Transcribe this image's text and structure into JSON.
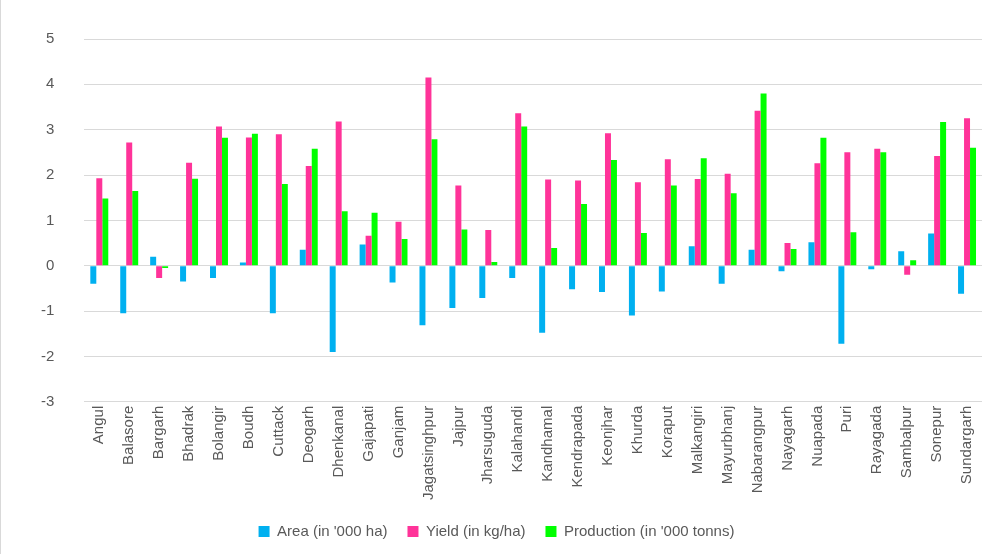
{
  "chart_data": {
    "type": "bar",
    "categories": [
      "Angul",
      "Balasore",
      "Bargarh",
      "Bhadrak",
      "Bolangir",
      "Boudh",
      "Cuttack",
      "Deogarh",
      "Dhenkanal",
      "Gajapati",
      "Ganjam",
      "Jagatsinghpur",
      "Jajpur",
      "Jharsuguda",
      "Kalahandi",
      "Kandhamal",
      "Kendrapada",
      "Keonjhar",
      "Khurda",
      "Koraput",
      "Malkangiri",
      "Mayurbhanj",
      "Nabarangpur",
      "Nayagarh",
      "Nuapada",
      "Puri",
      "Rayagada",
      "Sambalpur",
      "Sonepur",
      "Sundargarh"
    ],
    "series": [
      {
        "name": "Area (in '000 ha)",
        "color": "#00b0f0",
        "values": [
          -0.4,
          -1.05,
          0.2,
          -0.35,
          -0.27,
          0.07,
          -1.05,
          0.35,
          -1.9,
          0.47,
          -0.37,
          -1.31,
          -0.93,
          -0.71,
          -0.27,
          -1.48,
          -0.52,
          -0.58,
          -1.1,
          -0.57,
          0.43,
          -0.4,
          0.35,
          -0.12,
          0.52,
          -1.72,
          -0.08,
          0.32,
          0.71,
          -0.62
        ]
      },
      {
        "name": "Yield (in kg/ha)",
        "color": "#ff3399",
        "values": [
          1.93,
          2.72,
          -0.27,
          2.27,
          3.07,
          2.83,
          2.9,
          2.2,
          3.18,
          0.66,
          0.97,
          4.15,
          1.77,
          0.79,
          3.36,
          1.9,
          1.88,
          2.92,
          1.84,
          2.35,
          1.91,
          2.03,
          3.42,
          0.5,
          2.26,
          2.5,
          2.58,
          -0.2,
          2.42,
          3.25
        ]
      },
      {
        "name": "Production (in '000 tonns)",
        "color": "#00ff00",
        "values": [
          1.48,
          1.65,
          -0.05,
          1.92,
          2.82,
          2.91,
          1.8,
          2.58,
          1.2,
          1.17,
          0.59,
          2.79,
          0.8,
          0.08,
          3.07,
          0.39,
          1.36,
          2.33,
          0.72,
          1.77,
          2.37,
          1.6,
          3.8,
          0.37,
          2.82,
          0.74,
          2.5,
          0.12,
          3.17,
          2.6
        ]
      }
    ],
    "ylim": [
      -3,
      5
    ],
    "yticks": [
      -3,
      -2,
      -1,
      0,
      1,
      2,
      3,
      4,
      5
    ],
    "grid": "y",
    "legend": "bottom"
  }
}
